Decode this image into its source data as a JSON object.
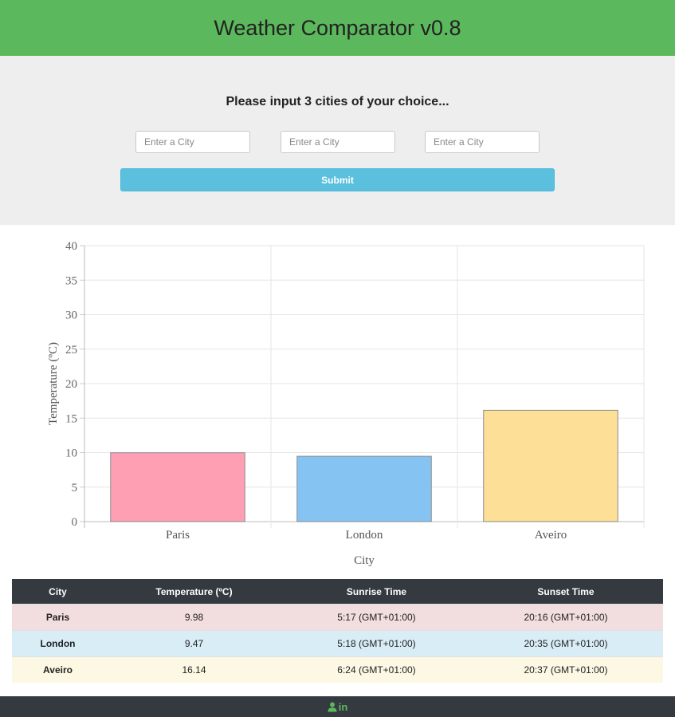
{
  "header": {
    "title": "Weather Comparator v0.8"
  },
  "form": {
    "prompt": "Please input 3 cities of your choice...",
    "inputs": [
      {
        "placeholder": "Enter a City",
        "value": ""
      },
      {
        "placeholder": "Enter a City",
        "value": ""
      },
      {
        "placeholder": "Enter a City",
        "value": ""
      }
    ],
    "submit_label": "Submit"
  },
  "chart_data": {
    "type": "bar",
    "categories": [
      "Paris",
      "London",
      "Aveiro"
    ],
    "values": [
      9.98,
      9.47,
      16.14
    ],
    "colors": [
      "#ff9fb4",
      "#85c4f2",
      "#fedf97"
    ],
    "title": "",
    "xlabel": "City",
    "ylabel": "Temperature (ºC)",
    "ylim": [
      0,
      40
    ],
    "yticks": [
      0,
      5,
      10,
      15,
      20,
      25,
      30,
      35,
      40
    ],
    "grid": true
  },
  "table": {
    "headers": [
      "City",
      "Temperature (ºC)",
      "Sunrise Time",
      "Sunset Time"
    ],
    "rows": [
      {
        "city": "Paris",
        "temp": "9.98",
        "sunrise": "5:17 (GMT+01:00)",
        "sunset": "20:16 (GMT+01:00)"
      },
      {
        "city": "London",
        "temp": "9.47",
        "sunrise": "5:18 (GMT+01:00)",
        "sunset": "20:35 (GMT+01:00)"
      },
      {
        "city": "Aveiro",
        "temp": "16.14",
        "sunrise": "6:24 (GMT+01:00)",
        "sunset": "20:37 (GMT+01:00)"
      }
    ]
  },
  "footer": {
    "linkedin_text": "in"
  },
  "colors": {
    "header_bg": "#5cb85c",
    "button_bg": "#5bc0de",
    "footer_bg": "#343a40"
  }
}
